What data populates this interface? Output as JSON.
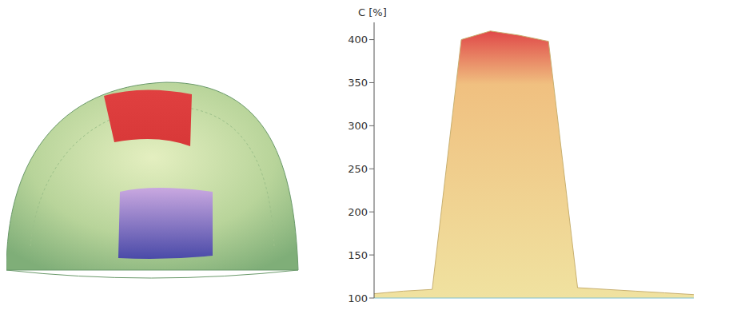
{
  "chart_data": {
    "type": "area",
    "y_label": "C [%]",
    "categories": [
      null,
      null,
      null,
      null,
      null,
      null,
      null,
      null,
      null,
      null,
      null,
      null
    ],
    "values": [
      105,
      108,
      110,
      400,
      410,
      405,
      398,
      112,
      110,
      108,
      106,
      104
    ],
    "color": "#f0e2a0",
    "ylim": [
      100,
      420
    ],
    "yticks": [
      100,
      150,
      200,
      250,
      300,
      350,
      400
    ],
    "grid": false,
    "tick_labels": "y"
  }
}
